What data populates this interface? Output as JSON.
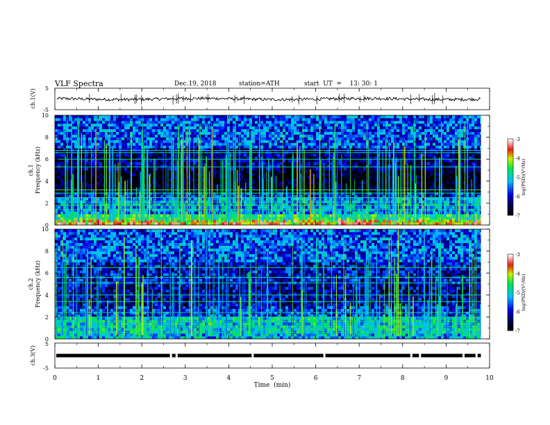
{
  "header": {
    "title": "VLF  Spectra",
    "date": "Dec.19, 2018",
    "station": "station=ATH",
    "start_ut": "start  UT  =    13: 30: 1"
  },
  "chart_data": [
    {
      "type": "line",
      "name": "ch1-waveform",
      "ylabel": "ch.1(V)",
      "ylim": [
        -5,
        5
      ],
      "yticks": [
        "5",
        "-5"
      ],
      "xlim": [
        0,
        10
      ],
      "trace_end_min": 9.8,
      "baseline_v": 0.0,
      "noise_amp_v": 0.7
    },
    {
      "type": "heatmap",
      "name": "ch1-spectrogram",
      "ylabel": "ch.1\nFrequency  (kHz)",
      "ylabel_line1": "ch.1",
      "ylabel_line2": "Frequency  (kHz)",
      "xlim": [
        0,
        10
      ],
      "ylim": [
        0,
        10
      ],
      "yticks": [
        "0",
        "2",
        "4",
        "6",
        "8",
        "10"
      ],
      "data_end_min": 9.8,
      "colorbar": {
        "label": "log(PSD)(V²/Hz)",
        "range": [
          -7,
          -3
        ],
        "ticks": [
          "-3",
          "-4",
          "-5",
          "-6",
          "-7"
        ]
      },
      "background_levels_by_freq": [
        {
          "f": [
            0,
            0.4
          ],
          "level": -3.8
        },
        {
          "f": [
            0.4,
            1.0
          ],
          "level": -4.6
        },
        {
          "f": [
            1.0,
            2.3
          ],
          "level": -5.4
        },
        {
          "f": [
            2.3,
            3.0
          ],
          "level": -6.0
        },
        {
          "f": [
            3.0,
            5.0
          ],
          "level": -6.8
        },
        {
          "f": [
            5.0,
            7.0
          ],
          "level": -6.3
        },
        {
          "f": [
            7.0,
            10.0
          ],
          "level": -5.6
        }
      ],
      "horizontal_lines_khz": [
        0.7,
        1.4,
        1.8,
        2.1,
        2.5,
        2.9,
        3.2,
        5.3,
        6.0,
        6.6,
        6.8
      ],
      "sferic_count": 170,
      "sferic_level": -4.6
    },
    {
      "type": "heatmap",
      "name": "ch2-spectrogram",
      "ylabel": "ch.2\nFrequency  (kHz)",
      "ylabel_line1": "ch.2",
      "ylabel_line2": "Frequency  (kHz)",
      "xlim": [
        0,
        10
      ],
      "ylim": [
        0,
        10
      ],
      "yticks": [
        "0",
        "2",
        "4",
        "6",
        "8",
        "10"
      ],
      "data_end_min": 9.8,
      "colorbar": {
        "label": "log(PSD)(V²/Hz)",
        "range": [
          -7,
          -3
        ],
        "ticks": [
          "-3",
          "-4",
          "-5",
          "-6",
          "-7"
        ]
      },
      "background_levels_by_freq": [
        {
          "f": [
            0,
            0.4
          ],
          "level": -5.2
        },
        {
          "f": [
            0.4,
            2.0
          ],
          "level": -5.0
        },
        {
          "f": [
            2.0,
            3.0
          ],
          "level": -5.8
        },
        {
          "f": [
            3.0,
            5.0
          ],
          "level": -6.2
        },
        {
          "f": [
            5.0,
            7.0
          ],
          "level": -6.0
        },
        {
          "f": [
            7.0,
            10.0
          ],
          "level": -5.6
        }
      ],
      "horizontal_lines_khz": [
        0.6,
        1.1,
        1.6,
        2.0,
        2.4,
        3.4,
        4.0,
        5.1,
        5.6,
        6.5
      ],
      "sferic_count": 150,
      "sferic_level": -4.8
    },
    {
      "type": "line",
      "name": "ch3-waveform",
      "ylabel": "ch.3(V)",
      "ylim": [
        -5,
        5
      ],
      "yticks": [
        "5",
        "-5"
      ],
      "xlim": [
        0,
        10
      ],
      "trace_end_min": 9.8,
      "baseline_v": 0.0,
      "gaps_min": [
        2.67,
        2.8,
        4.55,
        6.2,
        8.2,
        8.4,
        9.4,
        9.7
      ]
    }
  ],
  "xaxis": {
    "label": "Time  (min)",
    "ticks": [
      "0",
      "1",
      "2",
      "3",
      "4",
      "5",
      "6",
      "7",
      "8",
      "9",
      "10"
    ]
  }
}
